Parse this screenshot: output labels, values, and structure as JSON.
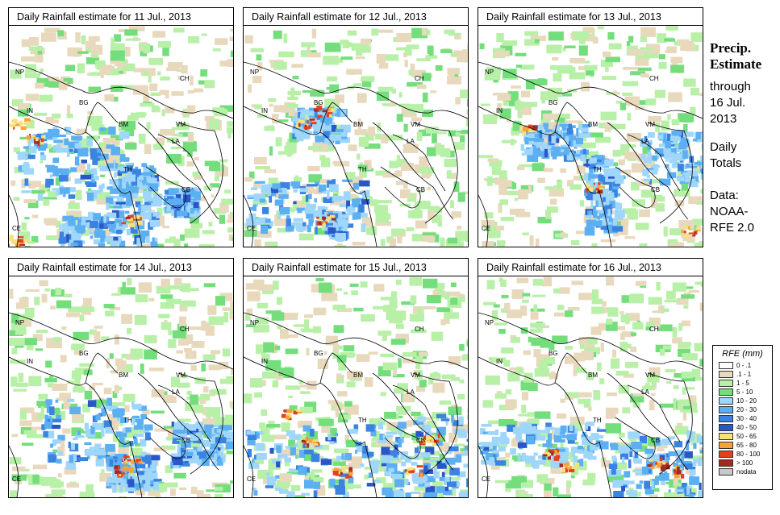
{
  "colors": {
    "c0": "#ffffff",
    "c1": "#e8d9bd",
    "c2": "#b8f0a8",
    "c3": "#74de7c",
    "c4": "#9fd6fb",
    "c5": "#5cb0f2",
    "c6": "#3b83e0",
    "c7": "#2a57c8",
    "c8": "#f6e27a",
    "c9": "#f7a33a",
    "c10": "#e4401c",
    "c11": "#a32a23",
    "nodata": "#c8c8c8"
  },
  "sidebar": {
    "title_line1": "Precip.",
    "title_line2": "Estimate",
    "through": "through",
    "date_line1": "16 Jul.",
    "date_line2": "2013",
    "daily": "Daily",
    "totals": "Totals",
    "data": "Data:",
    "source1": "NOAA-",
    "source2": "RFE 2.0"
  },
  "country_labels": [
    "NP",
    "CH",
    "BG",
    "IN",
    "BM",
    "VM",
    "LA",
    "TH",
    "CB",
    "CE"
  ],
  "panels": [
    {
      "title": "Daily Rainfall estimate for  11 Jul., 2013"
    },
    {
      "title": "Daily Rainfall estimate for  12 Jul., 2013"
    },
    {
      "title": "Daily Rainfall estimate for  13 Jul., 2013"
    },
    {
      "title": "Daily Rainfall estimate for  14 Jul., 2013"
    },
    {
      "title": "Daily Rainfall estimate for  15 Jul., 2013"
    },
    {
      "title": "Daily Rainfall estimate for  16 Jul., 2013"
    }
  ],
  "legend": {
    "title": "RFE (mm)",
    "items": [
      {
        "label": "0 - .1",
        "color": "#ffffff"
      },
      {
        "label": ".1 - 1",
        "color": "#e8d9bd"
      },
      {
        "label": "1 - 5",
        "color": "#b8f0a8"
      },
      {
        "label": "5 - 10",
        "color": "#74de7c"
      },
      {
        "label": "10 - 20",
        "color": "#9fd6fb"
      },
      {
        "label": "20 - 30",
        "color": "#5cb0f2"
      },
      {
        "label": "30 - 40",
        "color": "#3b83e0"
      },
      {
        "label": "40 - 50",
        "color": "#2a57c8"
      },
      {
        "label": "50 - 65",
        "color": "#f6e27a"
      },
      {
        "label": "65 - 80",
        "color": "#f7a33a"
      },
      {
        "label": "80 - 100",
        "color": "#e4401c"
      },
      {
        "label": "> 100",
        "color": "#a32a23"
      },
      {
        "label": "nodata",
        "color": "#c8c8c8"
      }
    ]
  }
}
